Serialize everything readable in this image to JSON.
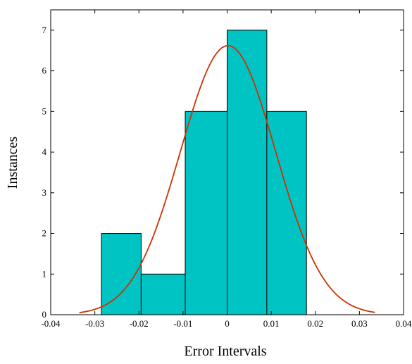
{
  "chart_data": {
    "type": "bar",
    "title": "",
    "xlabel": "Error Intervals",
    "ylabel": "Instances",
    "xlim": [
      -0.04,
      0.04
    ],
    "ylim": [
      0,
      7.5
    ],
    "grid": false,
    "legend": "none",
    "bins": [
      {
        "x0": -0.0285,
        "x1": -0.0195,
        "count": 2
      },
      {
        "x0": -0.0195,
        "x1": -0.0095,
        "count": 1
      },
      {
        "x0": -0.0095,
        "x1": 0.0,
        "count": 5
      },
      {
        "x0": 0.0,
        "x1": 0.009,
        "count": 7
      },
      {
        "x0": 0.009,
        "x1": 0.018,
        "count": 5
      }
    ],
    "x_ticks": [
      {
        "value": -0.04,
        "label": "-0.04"
      },
      {
        "value": -0.03,
        "label": "-0.03"
      },
      {
        "value": -0.02,
        "label": "-0.02"
      },
      {
        "value": -0.01,
        "label": "-0.01"
      },
      {
        "value": 0.0,
        "label": "0"
      },
      {
        "value": 0.01,
        "label": "0.01"
      },
      {
        "value": 0.02,
        "label": "0.02"
      },
      {
        "value": 0.03,
        "label": "0.03"
      },
      {
        "value": 0.04,
        "label": "0.04"
      }
    ],
    "y_ticks": [
      {
        "value": 0,
        "label": "0"
      },
      {
        "value": 1,
        "label": "1"
      },
      {
        "value": 2,
        "label": "2"
      },
      {
        "value": 3,
        "label": "3"
      },
      {
        "value": 4,
        "label": "4"
      },
      {
        "value": 5,
        "label": "5"
      },
      {
        "value": 6,
        "label": "6"
      },
      {
        "value": 7,
        "label": "7"
      }
    ],
    "fit_curve": {
      "type": "normal",
      "mean": 0.0002,
      "std": 0.0108,
      "peak": 6.62,
      "x_range": [
        -0.0335,
        0.0335
      ],
      "color": "#cc3300"
    },
    "colors": {
      "bar_fill": "#00c4c4",
      "bar_stroke": "#000000",
      "axis": "#000000"
    }
  }
}
